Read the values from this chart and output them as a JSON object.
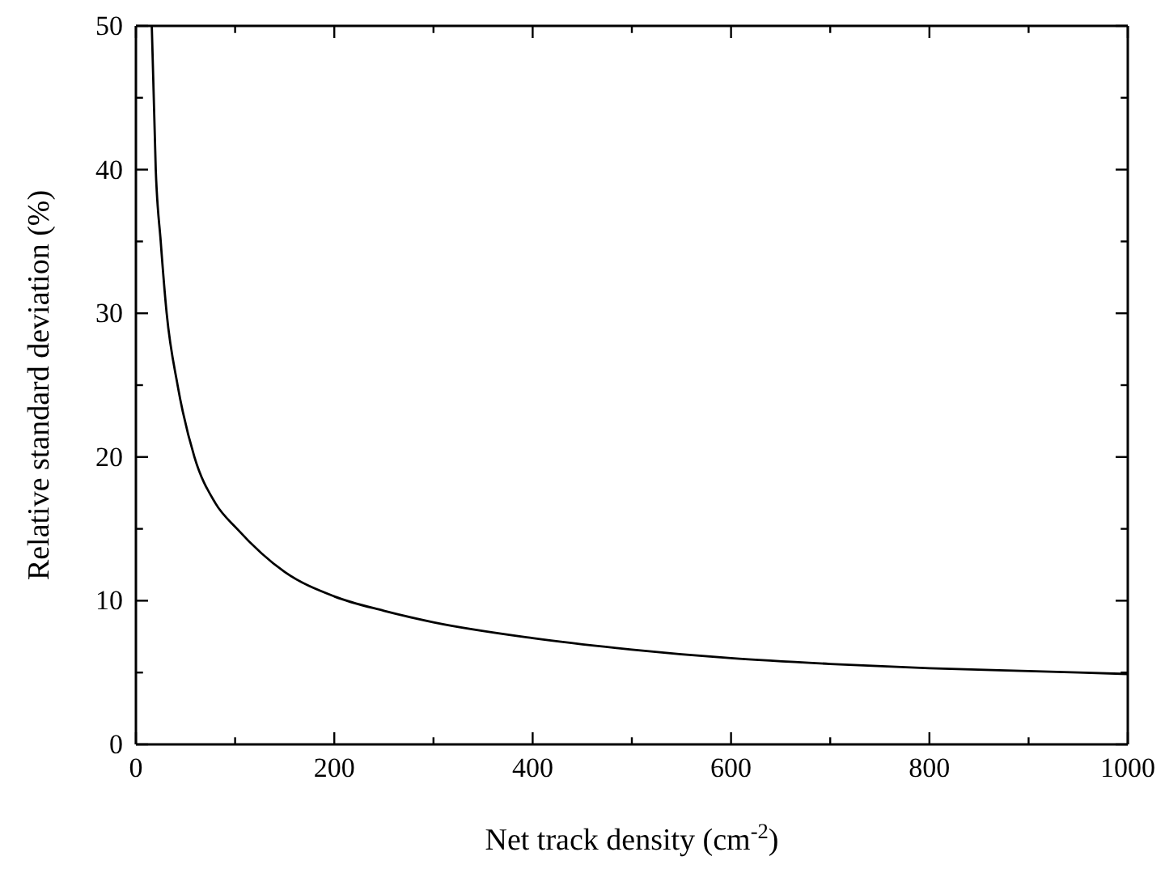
{
  "chart_data": {
    "type": "line",
    "xlabel": "Net track density (cm$^{-2}$)",
    "ylabel": "Relative standard deviation (%)",
    "x": [
      16,
      20,
      25,
      31,
      42,
      59,
      80,
      102,
      150,
      200,
      250,
      300,
      400,
      500,
      600,
      700,
      800,
      900,
      1000
    ],
    "series": [
      {
        "color": "#000000",
        "values": [
          50,
          40,
          35,
          30,
          25,
          20,
          16.8,
          15,
          12,
          10.3,
          9.3,
          8.5,
          7.4,
          6.6,
          6.0,
          5.6,
          5.3,
          5.1,
          4.9
        ]
      }
    ],
    "xlim": [
      0,
      1000
    ],
    "ylim": [
      0,
      50
    ],
    "xticks": [
      0,
      {
        "value": 100,
        "label": null
      },
      200,
      {
        "value": 300,
        "label": null
      },
      400,
      {
        "value": 500,
        "label": null
      },
      600,
      {
        "value": 700,
        "label": null
      },
      800,
      {
        "value": 900,
        "label": null
      },
      1000
    ],
    "yticks": [
      0,
      {
        "value": 5,
        "label": null
      },
      10,
      {
        "value": 15,
        "label": null
      },
      20,
      {
        "value": 25,
        "label": null
      },
      30,
      {
        "value": 35,
        "label": null
      },
      40,
      {
        "value": 45,
        "label": null
      },
      50
    ],
    "grid": false,
    "marker": "none",
    "line_style": "solid"
  }
}
